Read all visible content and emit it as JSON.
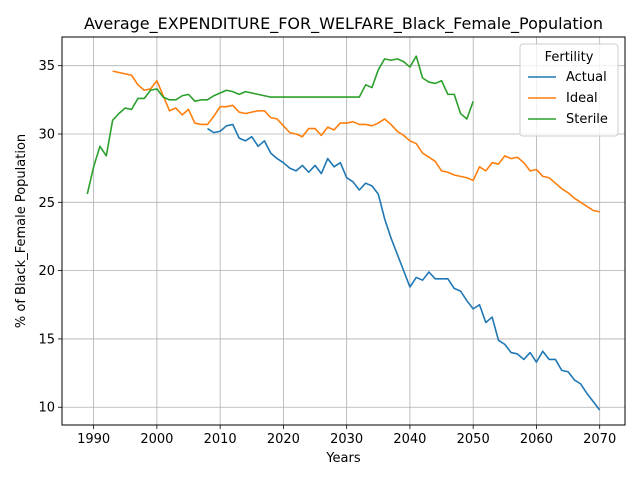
{
  "chart_data": {
    "type": "line",
    "title": "Average_EXPENDITURE_FOR_WELFARE_Black_Female_Population",
    "xlabel": "Years",
    "ylabel": "% of Black_Female Population",
    "xlim": [
      1985,
      2074
    ],
    "ylim": [
      8.7,
      37.1
    ],
    "xticks": [
      1990,
      2000,
      2010,
      2020,
      2030,
      2040,
      2050,
      2060,
      2070
    ],
    "yticks": [
      10,
      15,
      20,
      25,
      30,
      35
    ],
    "grid": true,
    "legend": {
      "title": "Fertility",
      "position": "top-right",
      "entries": [
        "Actual",
        "Ideal",
        "Sterile"
      ]
    },
    "series": [
      {
        "name": "Actual",
        "color": "#1f77b4",
        "x": [
          2008,
          2009,
          2010,
          2011,
          2012,
          2013,
          2014,
          2015,
          2016,
          2017,
          2018,
          2019,
          2020,
          2021,
          2022,
          2023,
          2024,
          2025,
          2026,
          2027,
          2028,
          2029,
          2030,
          2031,
          2032,
          2033,
          2034,
          2035,
          2036,
          2037,
          2038,
          2039,
          2040,
          2041,
          2042,
          2043,
          2044,
          2045,
          2046,
          2047,
          2048,
          2049,
          2050,
          2051,
          2052,
          2053,
          2054,
          2055,
          2056,
          2057,
          2058,
          2059,
          2060,
          2061,
          2062,
          2063,
          2064,
          2065,
          2066,
          2067,
          2068,
          2069,
          2070
        ],
        "y": [
          30.4,
          30.1,
          30.2,
          30.6,
          30.7,
          29.7,
          29.5,
          29.8,
          29.1,
          29.5,
          28.6,
          28.2,
          27.9,
          27.5,
          27.3,
          27.7,
          27.2,
          27.7,
          27.1,
          28.2,
          27.6,
          27.9,
          26.8,
          26.5,
          25.9,
          26.4,
          26.2,
          25.6,
          23.8,
          22.4,
          21.2,
          20.0,
          18.8,
          19.5,
          19.3,
          19.9,
          19.4,
          19.4,
          19.4,
          18.7,
          18.5,
          17.8,
          17.2,
          17.5,
          16.2,
          16.6,
          14.9,
          14.6,
          14.0,
          13.9,
          13.5,
          14.0,
          13.3,
          14.1,
          13.5,
          13.5,
          12.7,
          12.6,
          12.0,
          11.7,
          11.0,
          10.4,
          9.8
        ]
      },
      {
        "name": "Ideal",
        "color": "#ff7f0e",
        "x": [
          1993,
          1994,
          1995,
          1996,
          1997,
          1998,
          1999,
          2000,
          2001,
          2002,
          2003,
          2004,
          2005,
          2006,
          2007,
          2008,
          2009,
          2010,
          2011,
          2012,
          2013,
          2014,
          2015,
          2016,
          2017,
          2018,
          2019,
          2020,
          2021,
          2022,
          2023,
          2024,
          2025,
          2026,
          2027,
          2028,
          2029,
          2030,
          2031,
          2032,
          2033,
          2034,
          2035,
          2036,
          2037,
          2038,
          2039,
          2040,
          2041,
          2042,
          2043,
          2044,
          2045,
          2046,
          2047,
          2048,
          2049,
          2050,
          2051,
          2052,
          2053,
          2054,
          2055,
          2056,
          2057,
          2058,
          2059,
          2060,
          2061,
          2062,
          2063,
          2064,
          2065,
          2066,
          2067,
          2068,
          2069,
          2070
        ],
        "y": [
          34.6,
          34.5,
          34.4,
          34.3,
          33.6,
          33.2,
          33.3,
          33.9,
          32.8,
          31.7,
          31.9,
          31.4,
          31.8,
          30.8,
          30.7,
          30.7,
          31.3,
          32.0,
          32.0,
          32.1,
          31.6,
          31.5,
          31.6,
          31.7,
          31.7,
          31.2,
          31.1,
          30.6,
          30.1,
          30.0,
          29.8,
          30.4,
          30.4,
          29.9,
          30.5,
          30.3,
          30.8,
          30.8,
          30.9,
          30.7,
          30.7,
          30.6,
          30.8,
          31.1,
          30.7,
          30.2,
          29.9,
          29.5,
          29.3,
          28.6,
          28.3,
          28.0,
          27.3,
          27.2,
          27.0,
          26.9,
          26.8,
          26.6,
          27.6,
          27.3,
          27.9,
          27.8,
          28.4,
          28.2,
          28.3,
          27.9,
          27.3,
          27.4,
          26.9,
          26.8,
          26.4,
          26.0,
          25.7,
          25.3,
          25.0,
          24.7,
          24.4,
          24.3
        ]
      },
      {
        "name": "Sterile",
        "color": "#2ca02c",
        "x": [
          1989,
          1990,
          1991,
          1992,
          1993,
          1994,
          1995,
          1996,
          1997,
          1998,
          1999,
          2000,
          2001,
          2002,
          2003,
          2004,
          2005,
          2006,
          2007,
          2008,
          2009,
          2010,
          2011,
          2012,
          2013,
          2014,
          2015,
          2016,
          2017,
          2018,
          2019,
          2020,
          2021,
          2022,
          2023,
          2024,
          2025,
          2026,
          2027,
          2028,
          2029,
          2030,
          2031,
          2032,
          2033,
          2034,
          2035,
          2036,
          2037,
          2038,
          2039,
          2040,
          2041,
          2042,
          2043,
          2044,
          2045,
          2046,
          2047,
          2048,
          2049,
          2050
        ],
        "y": [
          25.6,
          27.6,
          29.1,
          28.4,
          31.0,
          31.5,
          31.9,
          31.8,
          32.6,
          32.6,
          33.2,
          33.3,
          32.7,
          32.5,
          32.5,
          32.8,
          32.9,
          32.4,
          32.5,
          32.5,
          32.8,
          33.0,
          33.2,
          33.1,
          32.9,
          33.1,
          33.0,
          32.9,
          32.8,
          32.7,
          32.7,
          32.7,
          32.7,
          32.7,
          32.7,
          32.7,
          32.7,
          32.7,
          32.7,
          32.7,
          32.7,
          32.7,
          32.7,
          32.7,
          33.6,
          33.4,
          34.7,
          35.5,
          35.4,
          35.5,
          35.3,
          34.9,
          35.7,
          34.1,
          33.8,
          33.7,
          33.9,
          32.9,
          32.9,
          31.5,
          31.1,
          32.4
        ]
      }
    ]
  }
}
